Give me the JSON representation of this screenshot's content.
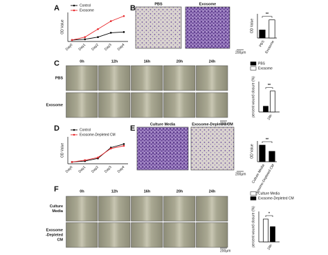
{
  "panel_labels": [
    "A",
    "B",
    "C",
    "D",
    "E",
    "F"
  ],
  "chart_data": [
    {
      "type": "line",
      "y_label": "OD Value",
      "categories": [
        "Day0",
        "Day1",
        "Day2",
        "Day3",
        "Day4"
      ],
      "series": [
        {
          "name": "Control",
          "color": "#000000",
          "values": [
            0.1,
            0.15,
            0.3,
            0.6,
            0.65
          ]
        },
        {
          "name": "Exosome",
          "color": "#e8262a",
          "values": [
            0.1,
            0.3,
            0.85,
            1.4,
            1.75
          ]
        }
      ],
      "ylim": [
        0,
        2
      ]
    },
    {
      "type": "bar",
      "y_label": "OD Value",
      "categories": [
        "PBS",
        "Exosome"
      ],
      "values": [
        0.2,
        0.45
      ],
      "colors": [
        "#000000",
        "#ffffff"
      ],
      "annotation": "**",
      "ylim": [
        0,
        0.6
      ]
    },
    {
      "type": "bar",
      "y_label": "percent wound closure (%)",
      "categories": [
        "24h"
      ],
      "series": [
        {
          "name": "PBS",
          "color": "#000000",
          "values": [
            15
          ]
        },
        {
          "name": "Exosome",
          "color": "#ffffff",
          "values": [
            55
          ]
        }
      ],
      "annotation": "**",
      "ylim": [
        0,
        80
      ]
    },
    {
      "type": "line",
      "y_label": "OD Value",
      "categories": [
        "Day0",
        "Day1",
        "Day2",
        "Day3",
        "Day4"
      ],
      "series": [
        {
          "name": "Control",
          "color": "#000000",
          "values": [
            0.1,
            0.15,
            0.3,
            0.9,
            1.1
          ]
        },
        {
          "name": "Exosome-Depleted CM",
          "color": "#e8262a",
          "values": [
            0.1,
            0.2,
            0.35,
            0.85,
            1.0
          ]
        }
      ],
      "ylim": [
        0,
        1.5
      ]
    },
    {
      "type": "bar",
      "y_label": "OD Value",
      "categories": [
        "Culture Media",
        "Exosome-Depleted CM"
      ],
      "values": [
        0.4,
        0.25
      ],
      "colors": [
        "#000000",
        "#000000"
      ],
      "annotation": "**",
      "ylim": [
        0,
        0.5
      ]
    },
    {
      "type": "bar",
      "y_label": "percent wound closure (%)",
      "categories": [
        "24h"
      ],
      "series": [
        {
          "name": "Culture Media",
          "color": "#ffffff",
          "values": [
            60
          ]
        },
        {
          "name": "Exosome-Depleted CM",
          "color": "#000000",
          "values": [
            40
          ]
        }
      ],
      "annotation": "*",
      "ylim": [
        0,
        80
      ]
    }
  ],
  "transwell": [
    {
      "titles": [
        "PBS",
        "Exosome"
      ],
      "scale": "200μm"
    },
    {
      "titles": [
        "Culture Media",
        "Exosome-Depleted CM"
      ],
      "scale": "200μm"
    }
  ],
  "wound": [
    {
      "times": [
        "0h",
        "12h",
        "16h",
        "20h",
        "24h"
      ],
      "rows": [
        [
          "PBS"
        ],
        [
          "Exosome"
        ]
      ],
      "scale": "200μm"
    },
    {
      "times": [
        "0h",
        "12h",
        "16h",
        "20h",
        "24h"
      ],
      "rows": [
        [
          "Culture",
          "Media"
        ],
        [
          "Exosome",
          "-Depleted",
          "CM"
        ]
      ],
      "scale": "200μm"
    }
  ]
}
